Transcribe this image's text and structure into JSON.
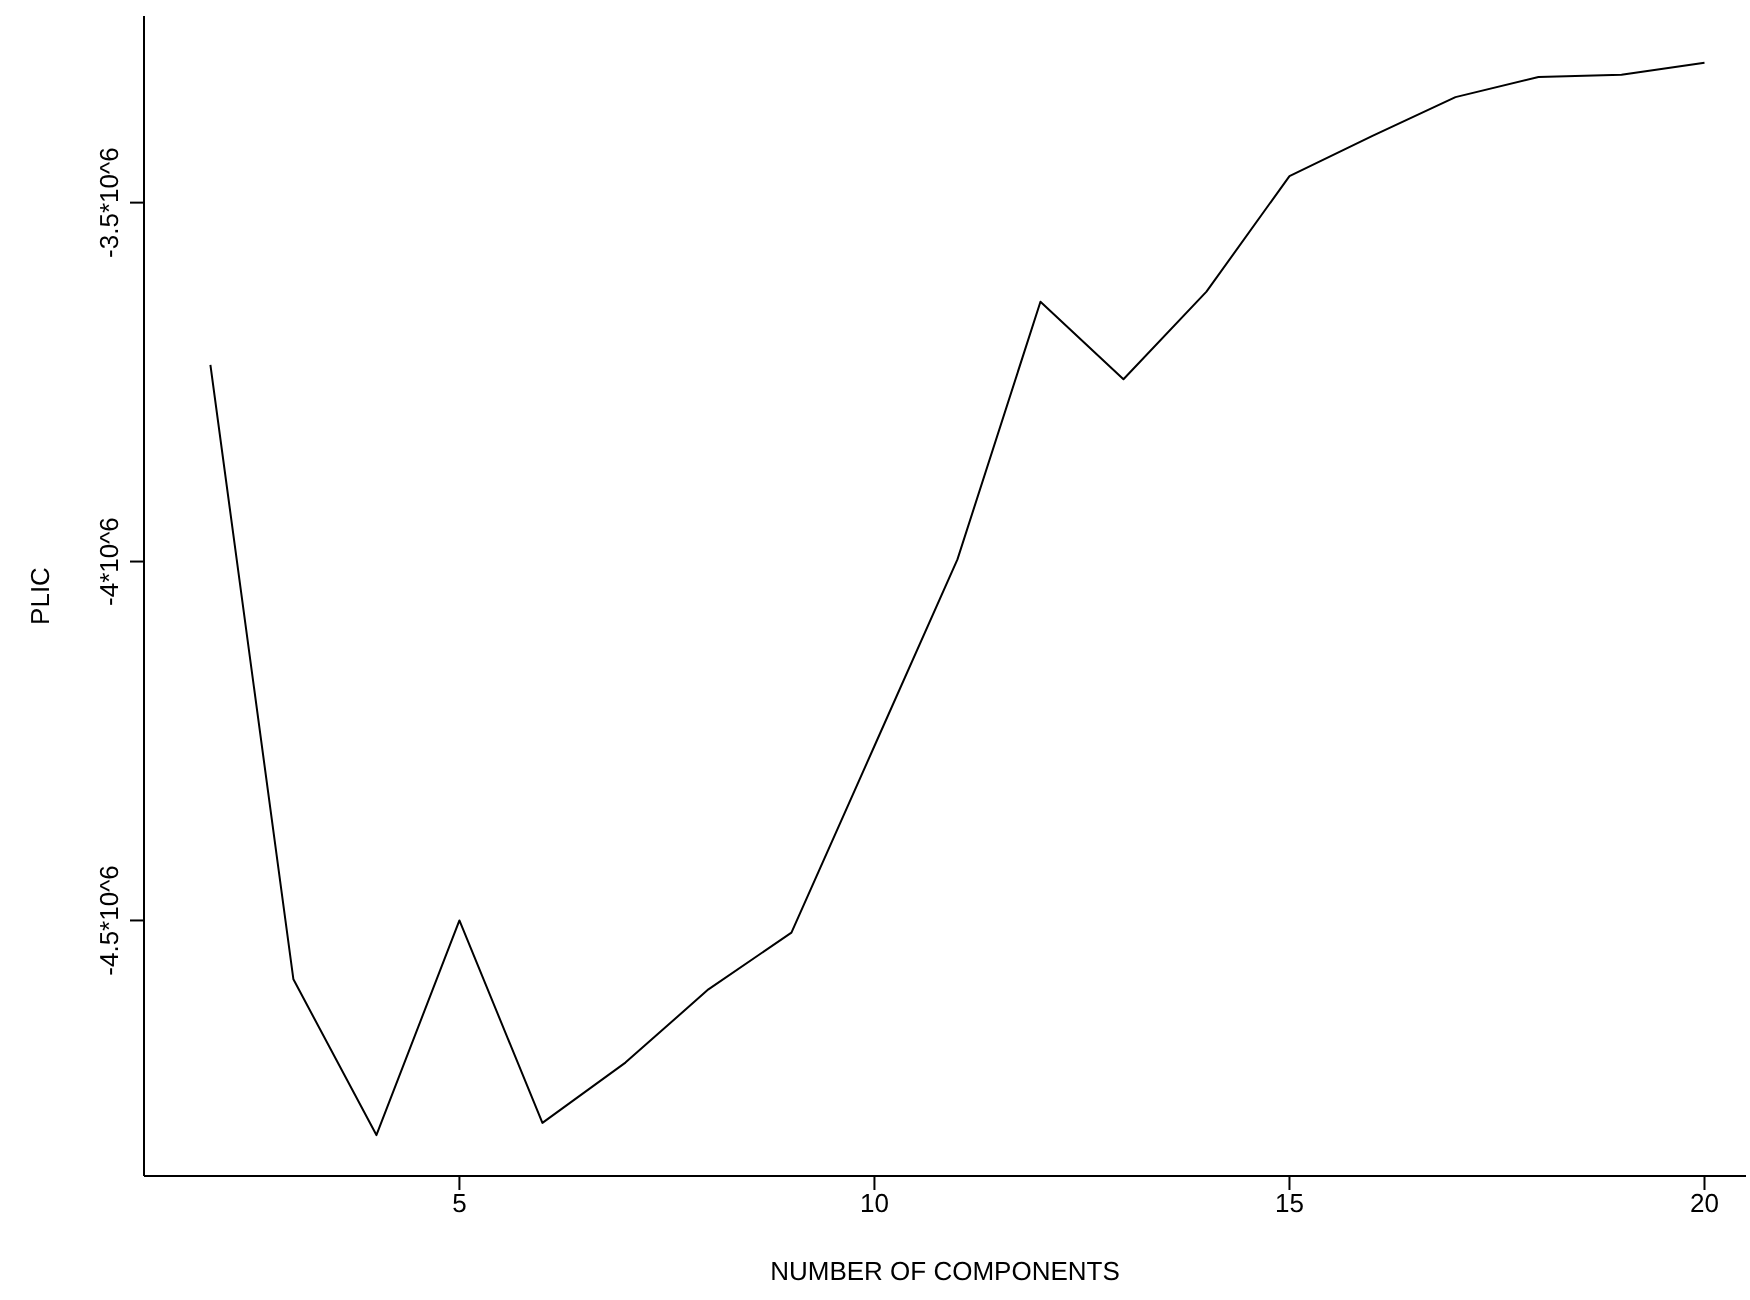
{
  "chart_data": {
    "type": "line",
    "xlabel": "NUMBER OF COMPONENTS",
    "ylabel": "PLIC",
    "x": [
      2,
      3,
      4,
      5,
      6,
      7,
      8,
      9,
      10,
      11,
      12,
      13,
      14,
      15,
      16,
      17,
      18,
      19,
      20
    ],
    "series": [
      {
        "color": "#000000",
        "values": [
          -3726000,
          -4582000,
          -4799000,
          -4500000,
          -4782000,
          -4698000,
          -4596000,
          -4517000,
          -4257000,
          -3997000,
          -3638000,
          -3746000,
          -3624000,
          -3463000,
          -3407000,
          -3353000,
          -3325000,
          -3322000,
          -3305000
        ]
      }
    ],
    "xlim": [
      1.2,
      20.5
    ],
    "xticks": [
      5,
      10,
      15,
      20
    ],
    "ylim": [
      -4856000,
      -3240000
    ],
    "yticks": [
      {
        "value": -4500000,
        "label": "-4.5*10^6"
      },
      {
        "value": -4000000,
        "label": "-4*10^6"
      },
      {
        "value": -3500000,
        "label": "-3.5*10^6"
      }
    ],
    "grid": false,
    "legend": false,
    "marker": "none",
    "line_style": "solid"
  }
}
